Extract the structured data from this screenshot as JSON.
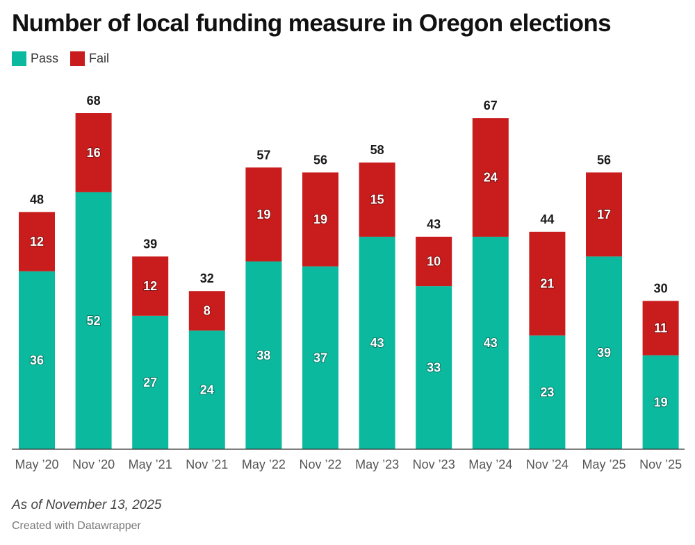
{
  "title": "Number of local funding measure in Oregon elections",
  "legend": [
    {
      "label": "Pass",
      "color": "#0bba9e"
    },
    {
      "label": "Fail",
      "color": "#c91c1c"
    }
  ],
  "note": "As of November 13, 2025",
  "credit": "Created with Datawrapper",
  "chart_data": {
    "type": "bar",
    "stacked": true,
    "title": "Number of local funding measure in Oregon elections",
    "categories": [
      "May ’20",
      "Nov ’20",
      "May ’21",
      "Nov ’21",
      "May ’22",
      "Nov ’22",
      "May ’23",
      "Nov ’23",
      "May ’24",
      "Nov ’24",
      "May ’25",
      "Nov ’25"
    ],
    "series": [
      {
        "name": "Pass",
        "color": "#0bba9e",
        "values": [
          36,
          52,
          27,
          24,
          38,
          37,
          43,
          33,
          43,
          23,
          39,
          19
        ]
      },
      {
        "name": "Fail",
        "color": "#c91c1c",
        "values": [
          12,
          16,
          12,
          8,
          19,
          19,
          15,
          10,
          24,
          21,
          17,
          11
        ]
      }
    ],
    "totals": [
      48,
      68,
      39,
      32,
      57,
      56,
      58,
      43,
      67,
      44,
      56,
      30
    ],
    "ylim": [
      0,
      68
    ],
    "grid": false,
    "xlabel": "",
    "ylabel": "",
    "legend_position": "top-left"
  }
}
